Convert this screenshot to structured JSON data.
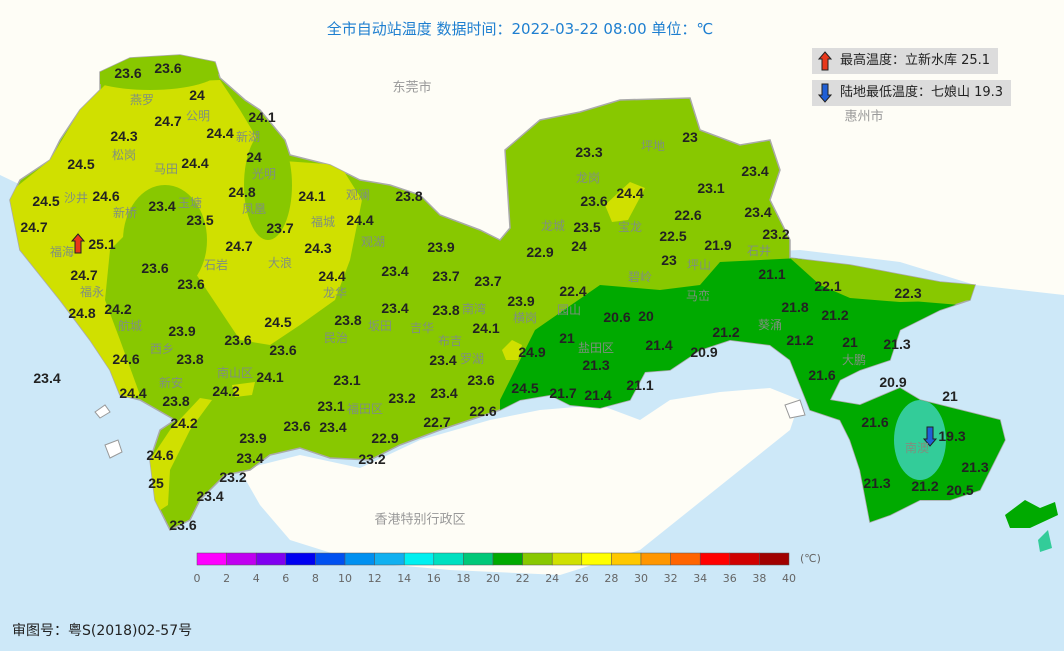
{
  "title": "全市自动站温度  数据时间：2022-03-22 08:00  单位：℃",
  "extremes": {
    "max": {
      "label": "最高温度：立新水库 25.1",
      "icon": "up-arrow-icon",
      "color": "#e8371a"
    },
    "min": {
      "label": "陆地最低温度：七娘山 19.3",
      "icon": "down-arrow-icon",
      "color": "#1f5fd6"
    }
  },
  "regions": [
    "东莞市",
    "惠州市",
    "香港特别行政区"
  ],
  "place_names": [
    "燕罗",
    "公明",
    "新湖",
    "松岗",
    "马田",
    "光明",
    "沙井",
    "玉塘",
    "新桥",
    "凤凰",
    "观澜",
    "福城",
    "观湖",
    "福海",
    "石岩",
    "大浪",
    "龙华",
    "福永",
    "航城",
    "西乡",
    "民治",
    "坂田",
    "吉华",
    "南湾",
    "布吉",
    "新安",
    "南山区",
    "福田区",
    "罗湖",
    "龙岗",
    "坪地",
    "龙城",
    "宝龙",
    "坪山",
    "石井",
    "园山",
    "横岗",
    "盐田区",
    "碧岭",
    "马峦",
    "葵涌",
    "大鹏",
    "南澳"
  ],
  "stations": [
    "23.6",
    "23.6",
    "24",
    "24.7",
    "24.3",
    "24.4",
    "24.1",
    "24.5",
    "24.4",
    "24",
    "24.5",
    "24.6",
    "23.4",
    "24.8",
    "24.1",
    "23.8",
    "24.7",
    "23.5",
    "23.7",
    "24.4",
    "25.1",
    "24.7",
    "24.3",
    "23.9",
    "24.7",
    "23.6",
    "24.4",
    "23.4",
    "23.7",
    "23.7",
    "23.6",
    "24.8",
    "24.2",
    "23.4",
    "23.8",
    "23.8",
    "23.9",
    "24.5",
    "24.1",
    "23.9",
    "23.6",
    "23.6",
    "24.6",
    "23.8",
    "24.9",
    "23.4",
    "23.4",
    "24.1",
    "23.1",
    "23.6",
    "24.4",
    "23.8",
    "24.2",
    "23.2",
    "23.4",
    "24.5",
    "23.1",
    "22.6",
    "24.2",
    "23.6",
    "23.4",
    "22.7",
    "23.9",
    "22.9",
    "24.6",
    "23.4",
    "23.2",
    "25",
    "23.2",
    "23.4",
    "23.6",
    "23.3",
    "23",
    "23.6",
    "24.4",
    "23.5",
    "24",
    "22.9",
    "23.1",
    "23.4",
    "22.6",
    "23.4",
    "22.5",
    "21.9",
    "23.2",
    "23",
    "22.4",
    "21.1",
    "22.1",
    "22.3",
    "21.8",
    "21.2",
    "20.6",
    "20",
    "21",
    "21.2",
    "21.4",
    "20.9",
    "21.2",
    "21",
    "21.3",
    "21.3",
    "21.6",
    "21.1",
    "21.7",
    "21.4",
    "20.9",
    "21",
    "21.6",
    "19.3",
    "21.3",
    "21.3",
    "21.2",
    "20.5"
  ],
  "colorbar": {
    "unit": "(℃)",
    "ticks": [
      "0",
      "2",
      "4",
      "6",
      "8",
      "10",
      "12",
      "14",
      "16",
      "18",
      "20",
      "22",
      "24",
      "26",
      "28",
      "30",
      "32",
      "34",
      "36",
      "38",
      "40"
    ],
    "colors": [
      "#ff00ff",
      "#c000f0",
      "#8000f0",
      "#0000f0",
      "#0050f0",
      "#0090f0",
      "#10b0f0",
      "#00f0f0",
      "#00e0c0",
      "#00c878",
      "#00aa00",
      "#88c800",
      "#d0e000",
      "#ffff00",
      "#ffc800",
      "#ff9600",
      "#ff6400",
      "#ff0000",
      "#d00000",
      "#a00000"
    ]
  },
  "map_colors": {
    "sea": "#cde8f8",
    "land_outside": "#fefdf6",
    "t20_22": "#00aa00",
    "t22_24": "#88c800",
    "t24_26": "#d0e000",
    "t18_20": "#33cc99"
  },
  "footer": "审图号：粤S(2018)02-57号"
}
